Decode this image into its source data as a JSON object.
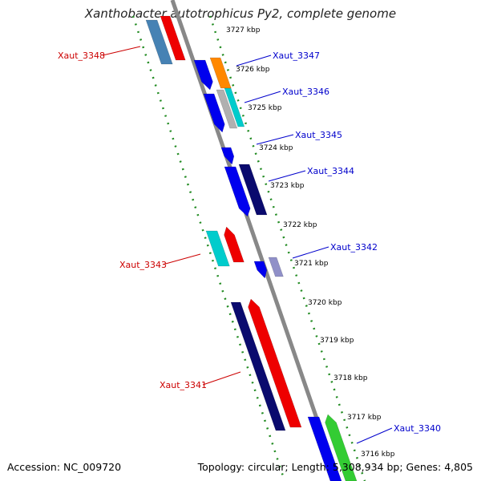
{
  "title": "Xanthobacter autotrophicus Py2, complete genome",
  "footer": {
    "accession": "Accession: NC_009720",
    "topology": "Topology: circular; Length: 5,308,934 bp; Genes: 4,805"
  },
  "kbp_ticks": [
    {
      "pos": 3727,
      "label": "3727 kbp"
    },
    {
      "pos": 3726,
      "label": "3726 kbp"
    },
    {
      "pos": 3725,
      "label": "3725 kbp"
    },
    {
      "pos": 3724,
      "label": "3724 kbp"
    },
    {
      "pos": 3723,
      "label": "3723 kbp"
    },
    {
      "pos": 3722,
      "label": "3722 kbp"
    },
    {
      "pos": 3721,
      "label": "3721 kbp"
    },
    {
      "pos": 3720,
      "label": "3720 kbp"
    },
    {
      "pos": 3719,
      "label": "3719 kbp"
    },
    {
      "pos": 3718,
      "label": "3718 kbp"
    },
    {
      "pos": 3717,
      "label": "3717 kbp"
    },
    {
      "pos": 3716,
      "label": "3716 kbp"
    }
  ],
  "gene_labels": [
    {
      "label": "Xaut_3348",
      "side": "left",
      "color": "#cc0000"
    },
    {
      "label": "Xaut_3347",
      "side": "right",
      "color": "#0000cc"
    },
    {
      "label": "Xaut_3346",
      "side": "right",
      "color": "#0000cc"
    },
    {
      "label": "Xaut_3345",
      "side": "right",
      "color": "#0000cc"
    },
    {
      "label": "Xaut_3344",
      "side": "right",
      "color": "#0000cc"
    },
    {
      "label": "Xaut_3342",
      "side": "right",
      "color": "#0000cc"
    },
    {
      "label": "Xaut_3343",
      "side": "left",
      "color": "#cc0000"
    },
    {
      "label": "Xaut_3341",
      "side": "left",
      "color": "#cc0000"
    },
    {
      "label": "Xaut_3340",
      "side": "right",
      "color": "#0000cc"
    }
  ],
  "colors": {
    "backbone": "#888888",
    "guide_dots": "#228b22",
    "forward_strand_label": "#cc0000",
    "reverse_strand_label": "#0000cc",
    "gene_blue": "#0000ee",
    "gene_navy": "#0a0a6e",
    "gene_red": "#ee0000",
    "gene_cyan": "#00cccc",
    "gene_orange": "#ff8800",
    "gene_steel": "#4682b4",
    "gene_green": "#33cc33",
    "gene_grey": "#b0b0b0",
    "gene_lavender": "#9090c8"
  }
}
